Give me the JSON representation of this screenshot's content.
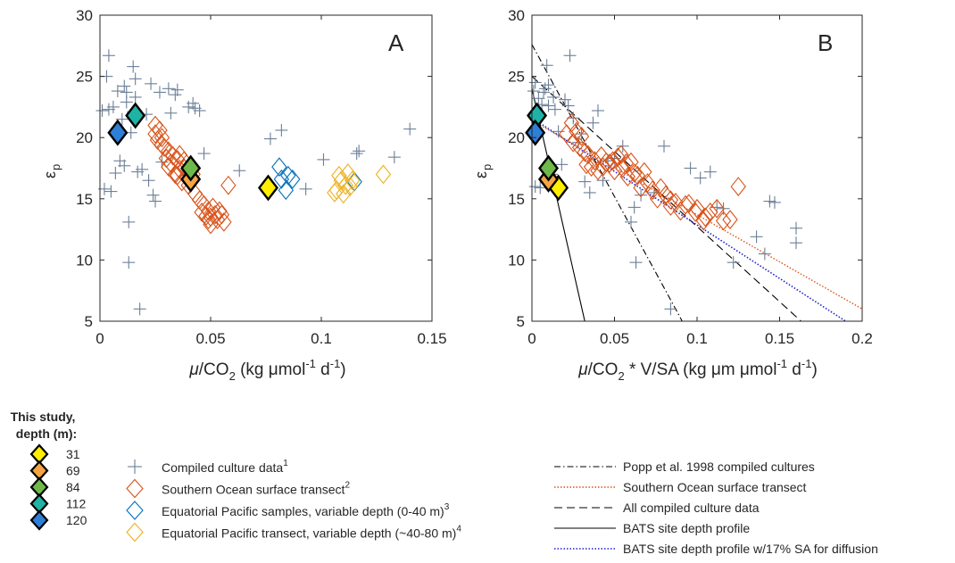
{
  "chart_data": [
    {
      "panel": "A",
      "type": "scatter",
      "panel_label": "A",
      "ylabel": "ε_p",
      "xlabel": {
        "mu": "μ",
        "co": "/CO",
        "sub": "2",
        "units": " (kg μmol",
        "sup1": "-1",
        "d": " d",
        "sup2": "-1",
        "close": ")"
      },
      "xlim": [
        0,
        0.15
      ],
      "ylim": [
        5,
        30
      ],
      "xticks": [
        "0",
        "0.05",
        "0.1",
        "0.15"
      ],
      "yticks": [
        "5",
        "10",
        "15",
        "20",
        "25",
        "30"
      ],
      "series": [
        {
          "key": "culture",
          "points": [
            [
              0.001,
              22.2
            ],
            [
              0.002,
              15.8
            ],
            [
              0.003,
              25.0
            ],
            [
              0.004,
              26.7
            ],
            [
              0.004,
              22.3
            ],
            [
              0.005,
              15.6
            ],
            [
              0.006,
              22.5
            ],
            [
              0.007,
              17.1
            ],
            [
              0.008,
              23.8
            ],
            [
              0.009,
              18.1
            ],
            [
              0.01,
              21.5
            ],
            [
              0.011,
              24.2
            ],
            [
              0.011,
              17.7
            ],
            [
              0.012,
              23.7
            ],
            [
              0.012,
              22.9
            ],
            [
              0.013,
              13.1
            ],
            [
              0.013,
              9.8
            ],
            [
              0.014,
              20.4
            ],
            [
              0.015,
              22.1
            ],
            [
              0.015,
              25.8
            ],
            [
              0.016,
              24.8
            ],
            [
              0.016,
              23.3
            ],
            [
              0.017,
              17.2
            ],
            [
              0.018,
              6.0
            ],
            [
              0.019,
              17.4
            ],
            [
              0.021,
              21.9
            ],
            [
              0.022,
              16.5
            ],
            [
              0.023,
              24.4
            ],
            [
              0.024,
              15.3
            ],
            [
              0.025,
              14.8
            ],
            [
              0.027,
              23.7
            ],
            [
              0.028,
              18.0
            ],
            [
              0.031,
              24.0
            ],
            [
              0.032,
              22.0
            ],
            [
              0.034,
              23.5
            ],
            [
              0.035,
              23.9
            ],
            [
              0.04,
              22.5
            ],
            [
              0.042,
              22.8
            ],
            [
              0.043,
              22.4
            ],
            [
              0.045,
              22.2
            ],
            [
              0.047,
              18.7
            ],
            [
              0.063,
              17.3
            ],
            [
              0.077,
              19.9
            ],
            [
              0.082,
              20.6
            ],
            [
              0.093,
              15.8
            ],
            [
              0.101,
              18.2
            ],
            [
              0.116,
              18.7
            ],
            [
              0.117,
              18.9
            ],
            [
              0.133,
              18.4
            ],
            [
              0.14,
              20.7
            ]
          ]
        },
        {
          "key": "southern",
          "points": [
            [
              0.025,
              21.0
            ],
            [
              0.025,
              20.3
            ],
            [
              0.026,
              19.8
            ],
            [
              0.027,
              20.6
            ],
            [
              0.028,
              20.0
            ],
            [
              0.028,
              19.4
            ],
            [
              0.029,
              19.2
            ],
            [
              0.03,
              18.3
            ],
            [
              0.031,
              18.9
            ],
            [
              0.031,
              17.6
            ],
            [
              0.032,
              17.9
            ],
            [
              0.033,
              18.5
            ],
            [
              0.034,
              17.0
            ],
            [
              0.035,
              18.2
            ],
            [
              0.035,
              16.9
            ],
            [
              0.036,
              18.6
            ],
            [
              0.036,
              17.4
            ],
            [
              0.037,
              16.4
            ],
            [
              0.038,
              18.1
            ],
            [
              0.038,
              17.5
            ],
            [
              0.039,
              16.8
            ],
            [
              0.04,
              17.4
            ],
            [
              0.04,
              16.1
            ],
            [
              0.042,
              17.0
            ],
            [
              0.043,
              15.4
            ],
            [
              0.045,
              14.9
            ],
            [
              0.046,
              13.9
            ],
            [
              0.047,
              14.5
            ],
            [
              0.048,
              13.6
            ],
            [
              0.049,
              13.3
            ],
            [
              0.049,
              14.0
            ],
            [
              0.05,
              13.5
            ],
            [
              0.05,
              12.9
            ],
            [
              0.051,
              14.3
            ],
            [
              0.052,
              13.7
            ],
            [
              0.053,
              13.3
            ],
            [
              0.054,
              14.0
            ],
            [
              0.055,
              13.7
            ],
            [
              0.056,
              13.1
            ],
            [
              0.058,
              16.1
            ]
          ]
        },
        {
          "key": "eqpac",
          "points": [
            [
              0.081,
              17.6
            ],
            [
              0.082,
              16.6
            ],
            [
              0.084,
              15.7
            ],
            [
              0.085,
              16.9
            ],
            [
              0.087,
              16.6
            ],
            [
              0.115,
              16.4
            ]
          ]
        },
        {
          "key": "eqpac_transect",
          "points": [
            [
              0.106,
              15.5
            ],
            [
              0.107,
              15.7
            ],
            [
              0.108,
              16.9
            ],
            [
              0.109,
              16.5
            ],
            [
              0.11,
              15.4
            ],
            [
              0.111,
              16.1
            ],
            [
              0.112,
              17.1
            ],
            [
              0.113,
              16.0
            ],
            [
              0.114,
              16.5
            ],
            [
              0.128,
              17.0
            ]
          ]
        },
        {
          "key": "this_study",
          "points": [
            [
              0.076,
              15.9,
              "31"
            ],
            [
              0.041,
              16.6,
              "69"
            ],
            [
              0.041,
              17.5,
              "84"
            ],
            [
              0.016,
              21.8,
              "112"
            ],
            [
              0.008,
              20.4,
              "120"
            ]
          ]
        }
      ]
    },
    {
      "panel": "B",
      "type": "scatter",
      "panel_label": "B",
      "ylabel": "ε_p",
      "xlabel": {
        "mu": "μ",
        "co": "/CO",
        "sub": "2",
        "rest": " * V/SA (kg μm μmol",
        "sup1": "-1",
        "d": " d",
        "sup2": "-1",
        "close": ")"
      },
      "xlim": [
        0,
        0.2
      ],
      "ylim": [
        5,
        30
      ],
      "xticks": [
        "0",
        "0.05",
        "0.1",
        "0.15",
        "0.2"
      ],
      "yticks": [
        "5",
        "10",
        "15",
        "20",
        "25",
        "30"
      ],
      "series": [
        {
          "key": "culture",
          "points": [
            [
              0.001,
              23.8
            ],
            [
              0.002,
              16.0
            ],
            [
              0.002,
              24.5
            ],
            [
              0.003,
              21.5
            ],
            [
              0.004,
              23.2
            ],
            [
              0.005,
              15.9
            ],
            [
              0.006,
              22.7
            ],
            [
              0.007,
              23.7
            ],
            [
              0.008,
              24.0
            ],
            [
              0.009,
              25.9
            ],
            [
              0.01,
              24.3
            ],
            [
              0.01,
              22.6
            ],
            [
              0.012,
              17.0
            ],
            [
              0.013,
              23.3
            ],
            [
              0.014,
              22.3
            ],
            [
              0.016,
              20.5
            ],
            [
              0.018,
              17.8
            ],
            [
              0.02,
              23.1
            ],
            [
              0.022,
              22.6
            ],
            [
              0.023,
              26.7
            ],
            [
              0.025,
              21.6
            ],
            [
              0.028,
              19.6
            ],
            [
              0.03,
              20.3
            ],
            [
              0.032,
              16.4
            ],
            [
              0.035,
              15.5
            ],
            [
              0.037,
              21.2
            ],
            [
              0.04,
              22.2
            ],
            [
              0.043,
              16.5
            ],
            [
              0.046,
              18.1
            ],
            [
              0.05,
              18.3
            ],
            [
              0.055,
              19.3
            ],
            [
              0.06,
              13.1
            ],
            [
              0.062,
              14.3
            ],
            [
              0.063,
              9.8
            ],
            [
              0.066,
              15.3
            ],
            [
              0.074,
              15.5
            ],
            [
              0.08,
              19.3
            ],
            [
              0.084,
              6.0
            ],
            [
              0.096,
              17.5
            ],
            [
              0.102,
              16.7
            ],
            [
              0.108,
              17.2
            ],
            [
              0.112,
              14.3
            ],
            [
              0.116,
              14.2
            ],
            [
              0.122,
              9.8
            ],
            [
              0.136,
              11.9
            ],
            [
              0.141,
              10.5
            ],
            [
              0.144,
              14.8
            ],
            [
              0.147,
              14.7
            ],
            [
              0.16,
              12.6
            ],
            [
              0.16,
              11.4
            ]
          ]
        },
        {
          "key": "southern",
          "points": [
            [
              0.021,
              20.3
            ],
            [
              0.024,
              21.2
            ],
            [
              0.025,
              19.6
            ],
            [
              0.027,
              20.5
            ],
            [
              0.029,
              19.2
            ],
            [
              0.03,
              20.1
            ],
            [
              0.032,
              18.8
            ],
            [
              0.033,
              17.8
            ],
            [
              0.034,
              18.6
            ],
            [
              0.036,
              17.6
            ],
            [
              0.038,
              18.1
            ],
            [
              0.04,
              17.3
            ],
            [
              0.042,
              18.5
            ],
            [
              0.043,
              17.6
            ],
            [
              0.045,
              18.0
            ],
            [
              0.047,
              17.9
            ],
            [
              0.049,
              18.1
            ],
            [
              0.05,
              17.3
            ],
            [
              0.052,
              18.4
            ],
            [
              0.054,
              18.6
            ],
            [
              0.055,
              17.5
            ],
            [
              0.057,
              17.9
            ],
            [
              0.058,
              16.8
            ],
            [
              0.06,
              18.0
            ],
            [
              0.062,
              17.1
            ],
            [
              0.064,
              16.9
            ],
            [
              0.066,
              15.9
            ],
            [
              0.068,
              17.2
            ],
            [
              0.07,
              16.3
            ],
            [
              0.073,
              15.7
            ],
            [
              0.076,
              15.0
            ],
            [
              0.078,
              15.9
            ],
            [
              0.081,
              15.3
            ],
            [
              0.084,
              14.9
            ],
            [
              0.087,
              14.7
            ],
            [
              0.09,
              14.0
            ],
            [
              0.095,
              14.6
            ],
            [
              0.1,
              14.2
            ],
            [
              0.104,
              13.2
            ],
            [
              0.108,
              13.9
            ],
            [
              0.112,
              14.2
            ],
            [
              0.116,
              13.2
            ],
            [
              0.12,
              13.3
            ],
            [
              0.125,
              16.0
            ],
            [
              0.084,
              14.4
            ],
            [
              0.093,
              14.5
            ],
            [
              0.099,
              13.9
            ],
            [
              0.105,
              13.5
            ]
          ]
        },
        {
          "key": "this_study",
          "points": [
            [
              0.016,
              15.9,
              "31"
            ],
            [
              0.01,
              16.6,
              "69"
            ],
            [
              0.01,
              17.5,
              "84"
            ],
            [
              0.003,
              21.8,
              "112"
            ],
            [
              0.002,
              20.4,
              "120"
            ]
          ]
        }
      ],
      "lines": [
        {
          "key": "popp",
          "from": [
            0,
            27.6
          ],
          "to": [
            0.091,
            5
          ]
        },
        {
          "key": "southern_fit",
          "from": [
            0,
            21.4
          ],
          "to": [
            0.2,
            6
          ]
        },
        {
          "key": "all_culture",
          "from": [
            0,
            25.0
          ],
          "to": [
            0.163,
            5
          ]
        },
        {
          "key": "bats",
          "from": [
            0,
            24.0
          ],
          "to": [
            0.032,
            5
          ]
        },
        {
          "key": "bats_sa",
          "from": [
            0,
            21.6
          ],
          "to": [
            0.19,
            5
          ]
        }
      ]
    }
  ],
  "legend": {
    "this_study_title": [
      "This study,",
      "depth (m):"
    ],
    "depths": [
      "31",
      "69",
      "84",
      "112",
      "120"
    ],
    "markers": [
      {
        "key": "culture",
        "label": "Compiled culture data",
        "sup": "1"
      },
      {
        "key": "southern",
        "label": "Southern Ocean surface transect",
        "sup": "2"
      },
      {
        "key": "eqpac",
        "label": "Equatorial Pacific samples, variable depth (0-40 m)",
        "sup": "3"
      },
      {
        "key": "eqpac_transect",
        "label": "Equatorial Pacific transect, variable depth (~40-80 m)",
        "sup": "4"
      }
    ],
    "lines": [
      {
        "key": "popp",
        "label": "Popp et al. 1998 compiled cultures"
      },
      {
        "key": "southern_fit",
        "label": "Southern Ocean surface transect"
      },
      {
        "key": "all_culture",
        "label": "All compiled culture data"
      },
      {
        "key": "bats",
        "label": "BATS site depth profile"
      },
      {
        "key": "bats_sa",
        "label": "BATS site depth profile w/17% SA for diffusion"
      }
    ]
  },
  "colors": {
    "culture": "#6b7f97",
    "southern": "#d95319",
    "eqpac": "#0072bd",
    "eqpac_transect": "#edb120",
    "popp": "#000000",
    "southern_fit": "#d95319",
    "all_culture": "#000000",
    "bats": "#000000",
    "bats_sa": "#1f1fd0",
    "depth_31": "#ffee00",
    "depth_69": "#f5a442",
    "depth_84": "#6fb84a",
    "depth_112": "#1fb3a6",
    "depth_120": "#2d7fd8",
    "axis": "#262626"
  }
}
